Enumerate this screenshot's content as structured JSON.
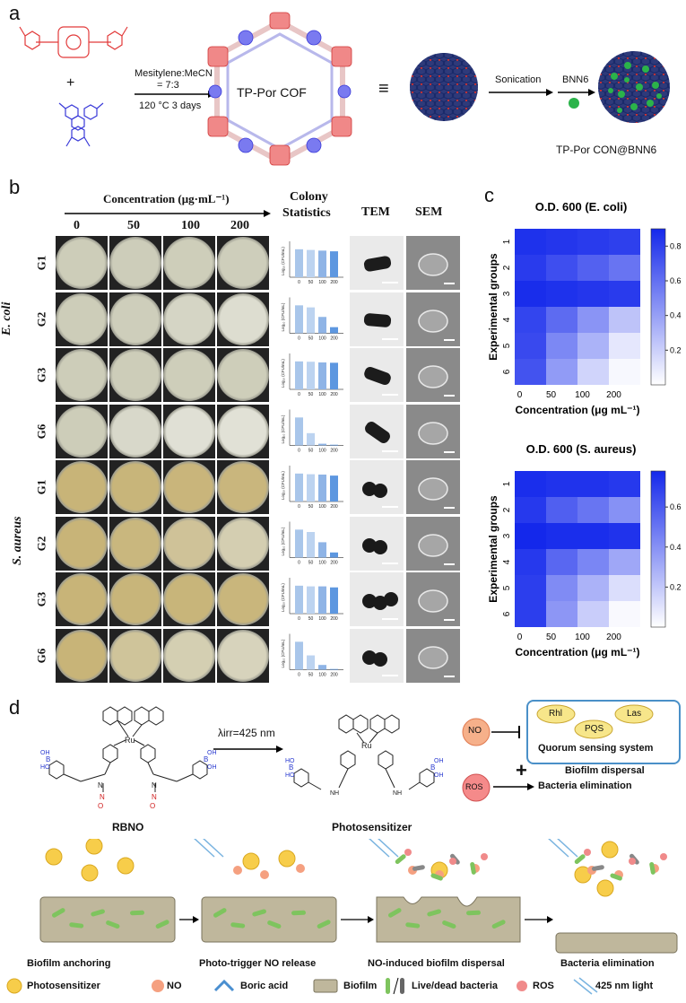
{
  "panel_a": {
    "letter": "a",
    "solvent": "Mesitylene:MeCN",
    "ratio": "= 7:3",
    "conditions": "120 °C 3 days",
    "plus": "+",
    "cof_label": "TP-Por COF",
    "equiv": "≡",
    "sonication": "Sonication",
    "bnn6": "BNN6",
    "con_label": "TP-Por CON@BNN6"
  },
  "panel_b": {
    "letter": "b",
    "concentration_header": "Concentration (μg·mL⁻¹)",
    "concentrations": [
      "0",
      "50",
      "100",
      "200"
    ],
    "colony_title": [
      "Colony",
      "Statistics"
    ],
    "tem": "TEM",
    "sem": "SEM",
    "ecoli": "E. coli",
    "saureus": "S. aureus",
    "ylabel": "Log₁₀ (CFU/mL)",
    "groups": [
      "G1",
      "G2",
      "G3",
      "G6",
      "G1",
      "G2",
      "G3",
      "G6"
    ],
    "bar_ticks": [
      "0",
      "50",
      "100",
      "200"
    ]
  },
  "panel_c": {
    "letter": "c",
    "title1": "O.D. 600 (E. coli)",
    "title2": "O.D. 600 (S. aureus)",
    "ylabel": "Experimental groups",
    "xlabel": "Concentration (μg mL⁻¹)",
    "rows": [
      "1",
      "2",
      "3",
      "4",
      "5",
      "6"
    ],
    "cols": [
      "0",
      "50",
      "100",
      "200"
    ],
    "cbar1": [
      "0.8",
      "0.6",
      "0.4",
      "0.2"
    ],
    "cbar2": [
      "0.6",
      "0.4",
      "0.2"
    ]
  },
  "panel_d": {
    "letter": "d",
    "rbno": "RBNO",
    "irr": "λirr=425 nm",
    "photosensitizer": "Photosensitizer",
    "no": "NO",
    "ros": "ROS",
    "rhl": "Rhl",
    "las": "Las",
    "pqs": "PQS",
    "quorum": "Quorum sensing system",
    "biofilm_dispersal": "Biofilm  dispersal",
    "bacteria_elim": "Bacteria elimination",
    "plus": "+",
    "steps": [
      "Biofilm anchoring",
      "Photo-trigger NO release",
      "NO-induced biofilm  dispersal",
      "Bacteria elimination"
    ],
    "legend": [
      "Photosensitizer",
      "NO",
      "Boric acid",
      "Biofilm",
      "Live/dead bacteria",
      "ROS",
      "425 nm light"
    ]
  },
  "chart_data": [
    {
      "type": "heatmap",
      "title": "O.D. 600 (E. coli)",
      "xlabel": "Concentration (μg mL⁻¹)",
      "ylabel": "Experimental groups",
      "x": [
        "0",
        "50",
        "100",
        "200"
      ],
      "y": [
        "1",
        "2",
        "3",
        "4",
        "5",
        "6"
      ],
      "values": [
        [
          0.86,
          0.84,
          0.82,
          0.8
        ],
        [
          0.82,
          0.74,
          0.66,
          0.58
        ],
        [
          0.88,
          0.86,
          0.84,
          0.82
        ],
        [
          0.78,
          0.62,
          0.45,
          0.25
        ],
        [
          0.76,
          0.5,
          0.32,
          0.1
        ],
        [
          0.72,
          0.42,
          0.18,
          0.03
        ]
      ],
      "range": [
        0,
        0.9
      ]
    },
    {
      "type": "heatmap",
      "title": "O.D. 600 (S. aureus)",
      "xlabel": "Concentration (μg mL⁻¹)",
      "ylabel": "Experimental groups",
      "x": [
        "0",
        "50",
        "100",
        "200"
      ],
      "y": [
        "1",
        "2",
        "3",
        "4",
        "5",
        "6"
      ],
      "values": [
        [
          0.76,
          0.74,
          0.74,
          0.72
        ],
        [
          0.72,
          0.58,
          0.5,
          0.4
        ],
        [
          0.78,
          0.76,
          0.76,
          0.74
        ],
        [
          0.72,
          0.55,
          0.44,
          0.32
        ],
        [
          0.7,
          0.42,
          0.28,
          0.12
        ],
        [
          0.7,
          0.38,
          0.18,
          0.02
        ]
      ],
      "range": [
        0,
        0.78
      ]
    },
    {
      "type": "bar",
      "ylabel": "Log₁₀ (CFU/mL)",
      "categories": [
        "0",
        "50",
        "100",
        "200"
      ],
      "series": [
        {
          "values": [
            8.2,
            8.0,
            7.8,
            7.6
          ]
        },
        {
          "values": [
            8.2,
            7.6,
            4.8,
            1.8
          ]
        },
        {
          "values": [
            8.2,
            8.1,
            7.9,
            7.8
          ]
        },
        {
          "values": [
            8.2,
            3.6,
            0.5,
            0.2
          ]
        },
        {
          "values": [
            8.2,
            8.0,
            7.9,
            7.6
          ]
        },
        {
          "values": [
            8.2,
            7.5,
            4.5,
            1.5
          ]
        },
        {
          "values": [
            8.2,
            8.0,
            8.0,
            7.7
          ]
        },
        {
          "values": [
            8.2,
            4.2,
            1.4,
            0.2
          ]
        }
      ],
      "ylim": [
        0,
        10
      ]
    }
  ]
}
